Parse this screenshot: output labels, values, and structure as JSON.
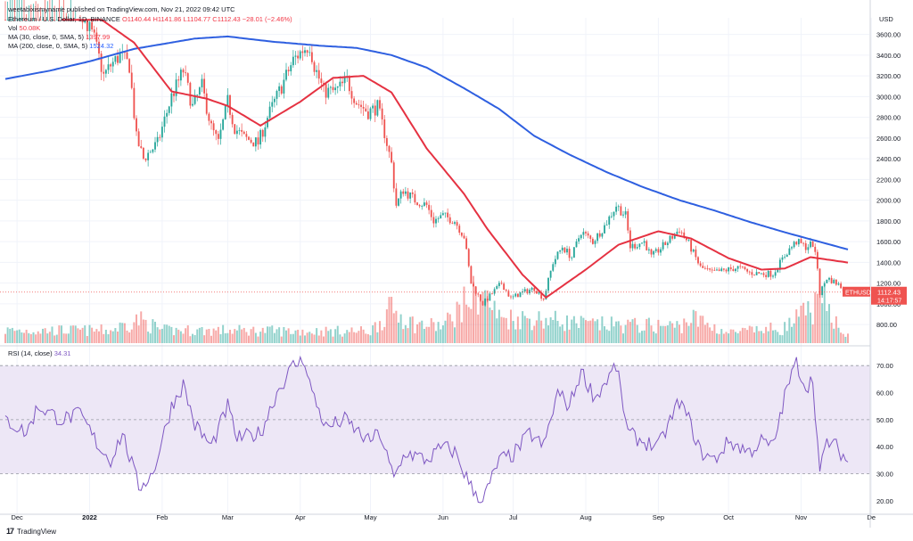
{
  "publisher": "weetabixismyname published on TradingView.com, Nov 21, 2022 09:42 UTC",
  "legend": {
    "symbol": "Ethereum / U.S. Dollar, 1D, BINANCE",
    "ohlc": "O1140.44  H1141.86  L1104.77  C1112.43  −28.01 (−2.46%)",
    "vol_label": "Vol",
    "vol_value": "50.08K",
    "ma30_label": "MA (30, close, 0, SMA, 5)",
    "ma30_value": "1397.99",
    "ma200_label": "MA (200, close, 0, SMA, 5)",
    "ma200_value": "1524.32",
    "rsi_label": "RSI (14, close)",
    "rsi_value": "34.31"
  },
  "currency": "USD",
  "price_tag": {
    "symbol": "ETHUSD",
    "price": "1112.43",
    "countdown": "14:17:57"
  },
  "brand": "TradingView",
  "colors": {
    "up": "#26a69a",
    "down": "#ef5350",
    "ma30": "#e53242",
    "ma200": "#2e5fe0",
    "rsi": "#7e57c2",
    "rsi_band": "#ede7f6"
  },
  "chart_data": [
    {
      "type": "candlestick",
      "title": "Ethereum / U.S. Dollar, 1D, BINANCE",
      "ylabel": "USD",
      "y_ticks": [
        800,
        1000,
        1200,
        1400,
        1600,
        1800,
        2000,
        2200,
        2400,
        2600,
        2800,
        3000,
        3200,
        3400,
        3600
      ],
      "ylim": [
        620,
        3760
      ],
      "x_ticks": [
        "Dec",
        "2022",
        "Feb",
        "Mar",
        "Apr",
        "May",
        "Jun",
        "Jul",
        "Aug",
        "Sep",
        "Oct",
        "Nov",
        "De"
      ],
      "last_price": 1112.43,
      "close_anchors": [
        {
          "date": "2021-11-26",
          "close": 4050
        },
        {
          "date": "2021-12-03",
          "close": 4100
        },
        {
          "date": "2021-12-05",
          "close": 3900
        },
        {
          "date": "2021-12-10",
          "close": 3950
        },
        {
          "date": "2021-12-16",
          "close": 3980
        },
        {
          "date": "2021-12-22",
          "close": 3950
        },
        {
          "date": "2021-12-28",
          "close": 3850
        },
        {
          "date": "2022-01-03",
          "close": 3550
        },
        {
          "date": "2022-01-07",
          "close": 3200
        },
        {
          "date": "2022-01-10",
          "close": 3300
        },
        {
          "date": "2022-01-14",
          "close": 3400
        },
        {
          "date": "2022-01-18",
          "close": 3300
        },
        {
          "date": "2022-01-21",
          "close": 2600
        },
        {
          "date": "2022-01-24",
          "close": 2400
        },
        {
          "date": "2022-01-30",
          "close": 2550
        },
        {
          "date": "2022-02-05",
          "close": 3000
        },
        {
          "date": "2022-02-10",
          "close": 3250
        },
        {
          "date": "2022-02-14",
          "close": 2900
        },
        {
          "date": "2022-02-18",
          "close": 3100
        },
        {
          "date": "2022-02-22",
          "close": 2700
        },
        {
          "date": "2022-02-25",
          "close": 2550
        },
        {
          "date": "2022-03-01",
          "close": 2950
        },
        {
          "date": "2022-03-04",
          "close": 2700
        },
        {
          "date": "2022-03-08",
          "close": 2600
        },
        {
          "date": "2022-03-14",
          "close": 2550
        },
        {
          "date": "2022-03-18",
          "close": 2800
        },
        {
          "date": "2022-03-24",
          "close": 3100
        },
        {
          "date": "2022-03-29",
          "close": 3350
        },
        {
          "date": "2022-04-02",
          "close": 3450
        },
        {
          "date": "2022-04-05",
          "close": 3500
        },
        {
          "date": "2022-04-07",
          "close": 3300
        },
        {
          "date": "2022-04-11",
          "close": 3050
        },
        {
          "date": "2022-04-16",
          "close": 3050
        },
        {
          "date": "2022-04-21",
          "close": 3150
        },
        {
          "date": "2022-04-25",
          "close": 2950
        },
        {
          "date": "2022-04-30",
          "close": 2850
        },
        {
          "date": "2022-05-04",
          "close": 2900
        },
        {
          "date": "2022-05-07",
          "close": 2650
        },
        {
          "date": "2022-05-10",
          "close": 2350
        },
        {
          "date": "2022-05-12",
          "close": 1950
        },
        {
          "date": "2022-05-15",
          "close": 2100
        },
        {
          "date": "2022-05-20",
          "close": 2000
        },
        {
          "date": "2022-05-25",
          "close": 1950
        },
        {
          "date": "2022-05-28",
          "close": 1800
        },
        {
          "date": "2022-06-01",
          "close": 1850
        },
        {
          "date": "2022-06-06",
          "close": 1800
        },
        {
          "date": "2022-06-10",
          "close": 1650
        },
        {
          "date": "2022-06-13",
          "close": 1200
        },
        {
          "date": "2022-06-18",
          "close": 1000
        },
        {
          "date": "2022-06-22",
          "close": 1100
        },
        {
          "date": "2022-06-26",
          "close": 1200
        },
        {
          "date": "2022-06-30",
          "close": 1050
        },
        {
          "date": "2022-07-04",
          "close": 1100
        },
        {
          "date": "2022-07-10",
          "close": 1150
        },
        {
          "date": "2022-07-14",
          "close": 1050
        },
        {
          "date": "2022-07-18",
          "close": 1400
        },
        {
          "date": "2022-07-22",
          "close": 1550
        },
        {
          "date": "2022-07-26",
          "close": 1450
        },
        {
          "date": "2022-07-30",
          "close": 1700
        },
        {
          "date": "2022-08-04",
          "close": 1600
        },
        {
          "date": "2022-08-09",
          "close": 1750
        },
        {
          "date": "2022-08-14",
          "close": 1950
        },
        {
          "date": "2022-08-18",
          "close": 1850
        },
        {
          "date": "2022-08-20",
          "close": 1550
        },
        {
          "date": "2022-08-26",
          "close": 1600
        },
        {
          "date": "2022-08-29",
          "close": 1450
        },
        {
          "date": "2022-09-05",
          "close": 1600
        },
        {
          "date": "2022-09-10",
          "close": 1720
        },
        {
          "date": "2022-09-14",
          "close": 1580
        },
        {
          "date": "2022-09-19",
          "close": 1350
        },
        {
          "date": "2022-09-24",
          "close": 1300
        },
        {
          "date": "2022-09-29",
          "close": 1320
        },
        {
          "date": "2022-10-05",
          "close": 1350
        },
        {
          "date": "2022-10-10",
          "close": 1300
        },
        {
          "date": "2022-10-15",
          "close": 1290
        },
        {
          "date": "2022-10-20",
          "close": 1290
        },
        {
          "date": "2022-10-26",
          "close": 1500
        },
        {
          "date": "2022-10-30",
          "close": 1600
        },
        {
          "date": "2022-11-03",
          "close": 1550
        },
        {
          "date": "2022-11-06",
          "close": 1580
        },
        {
          "date": "2022-11-08",
          "close": 1350
        },
        {
          "date": "2022-11-09",
          "close": 1100
        },
        {
          "date": "2022-11-12",
          "close": 1250
        },
        {
          "date": "2022-11-16",
          "close": 1200
        },
        {
          "date": "2022-11-21",
          "close": 1112
        }
      ],
      "ma30_anchors": [
        {
          "date": "2021-12-20",
          "value": 4100
        },
        {
          "date": "2022-01-05",
          "value": 3760
        },
        {
          "date": "2022-01-20",
          "value": 3520
        },
        {
          "date": "2022-02-05",
          "value": 3050
        },
        {
          "date": "2022-02-20",
          "value": 2980
        },
        {
          "date": "2022-03-01",
          "value": 2910
        },
        {
          "date": "2022-03-15",
          "value": 2720
        },
        {
          "date": "2022-04-01",
          "value": 2950
        },
        {
          "date": "2022-04-15",
          "value": 3180
        },
        {
          "date": "2022-04-28",
          "value": 3200
        },
        {
          "date": "2022-05-10",
          "value": 3040
        },
        {
          "date": "2022-05-25",
          "value": 2500
        },
        {
          "date": "2022-06-10",
          "value": 2060
        },
        {
          "date": "2022-06-20",
          "value": 1720
        },
        {
          "date": "2022-07-05",
          "value": 1280
        },
        {
          "date": "2022-07-15",
          "value": 1060
        },
        {
          "date": "2022-08-01",
          "value": 1330
        },
        {
          "date": "2022-08-15",
          "value": 1570
        },
        {
          "date": "2022-09-01",
          "value": 1700
        },
        {
          "date": "2022-09-15",
          "value": 1630
        },
        {
          "date": "2022-10-01",
          "value": 1440
        },
        {
          "date": "2022-10-15",
          "value": 1330
        },
        {
          "date": "2022-10-25",
          "value": 1340
        },
        {
          "date": "2022-11-05",
          "value": 1450
        },
        {
          "date": "2022-11-21",
          "value": 1398
        }
      ],
      "ma200_anchors": [
        {
          "date": "2021-11-26",
          "value": 3170
        },
        {
          "date": "2021-12-15",
          "value": 3250
        },
        {
          "date": "2022-01-01",
          "value": 3340
        },
        {
          "date": "2022-01-20",
          "value": 3460
        },
        {
          "date": "2022-02-15",
          "value": 3560
        },
        {
          "date": "2022-03-01",
          "value": 3580
        },
        {
          "date": "2022-03-20",
          "value": 3530
        },
        {
          "date": "2022-04-10",
          "value": 3490
        },
        {
          "date": "2022-04-25",
          "value": 3470
        },
        {
          "date": "2022-05-10",
          "value": 3400
        },
        {
          "date": "2022-05-25",
          "value": 3280
        },
        {
          "date": "2022-06-10",
          "value": 3080
        },
        {
          "date": "2022-06-25",
          "value": 2880
        },
        {
          "date": "2022-07-10",
          "value": 2620
        },
        {
          "date": "2022-07-25",
          "value": 2440
        },
        {
          "date": "2022-08-10",
          "value": 2270
        },
        {
          "date": "2022-08-25",
          "value": 2130
        },
        {
          "date": "2022-09-10",
          "value": 2000
        },
        {
          "date": "2022-09-25",
          "value": 1900
        },
        {
          "date": "2022-10-10",
          "value": 1790
        },
        {
          "date": "2022-10-25",
          "value": 1690
        },
        {
          "date": "2022-11-21",
          "value": 1524
        }
      ]
    },
    {
      "type": "bar",
      "title": "Vol",
      "values_note_free": true,
      "anchors": [
        {
          "date": "2021-11-26",
          "volume": 15
        },
        {
          "date": "2022-01-10",
          "volume": 15
        },
        {
          "date": "2022-01-22",
          "volume": 28
        },
        {
          "date": "2022-02-01",
          "volume": 15
        },
        {
          "date": "2022-03-01",
          "volume": 15
        },
        {
          "date": "2022-04-01",
          "volume": 14
        },
        {
          "date": "2022-05-01",
          "volume": 14
        },
        {
          "date": "2022-05-10",
          "volume": 40
        },
        {
          "date": "2022-05-20",
          "volume": 22
        },
        {
          "date": "2022-06-01",
          "volume": 20
        },
        {
          "date": "2022-06-13",
          "volume": 55
        },
        {
          "date": "2022-06-18",
          "volume": 60
        },
        {
          "date": "2022-06-25",
          "volume": 30
        },
        {
          "date": "2022-07-15",
          "volume": 28
        },
        {
          "date": "2022-08-01",
          "volume": 22
        },
        {
          "date": "2022-09-10",
          "volume": 20
        },
        {
          "date": "2022-09-15",
          "volume": 30
        },
        {
          "date": "2022-10-01",
          "volume": 12
        },
        {
          "date": "2022-10-25",
          "volume": 18
        },
        {
          "date": "2022-11-08",
          "volume": 45
        },
        {
          "date": "2022-11-10",
          "volume": 50
        },
        {
          "date": "2022-11-21",
          "volume": 8
        }
      ]
    },
    {
      "type": "line",
      "title": "RSI (14, close)",
      "y_ticks": [
        20,
        30,
        40,
        50,
        60,
        70
      ],
      "ylim": [
        15,
        76
      ],
      "bands": [
        30,
        50,
        70
      ],
      "last_value": 34.31,
      "anchors": [
        {
          "date": "2021-11-26",
          "rsi": 50
        },
        {
          "date": "2021-12-05",
          "rsi": 45
        },
        {
          "date": "2021-12-10",
          "rsi": 55
        },
        {
          "date": "2021-12-20",
          "rsi": 50
        },
        {
          "date": "2021-12-28",
          "rsi": 52
        },
        {
          "date": "2022-01-05",
          "rsi": 40
        },
        {
          "date": "2022-01-10",
          "rsi": 35
        },
        {
          "date": "2022-01-15",
          "rsi": 45
        },
        {
          "date": "2022-01-22",
          "rsi": 25
        },
        {
          "date": "2022-01-28",
          "rsi": 30
        },
        {
          "date": "2022-02-05",
          "rsi": 55
        },
        {
          "date": "2022-02-10",
          "rsi": 63
        },
        {
          "date": "2022-02-15",
          "rsi": 48
        },
        {
          "date": "2022-02-22",
          "rsi": 40
        },
        {
          "date": "2022-03-01",
          "rsi": 55
        },
        {
          "date": "2022-03-05",
          "rsi": 43
        },
        {
          "date": "2022-03-15",
          "rsi": 45
        },
        {
          "date": "2022-03-22",
          "rsi": 60
        },
        {
          "date": "2022-03-29",
          "rsi": 70
        },
        {
          "date": "2022-04-03",
          "rsi": 72
        },
        {
          "date": "2022-04-06",
          "rsi": 60
        },
        {
          "date": "2022-04-12",
          "rsi": 47
        },
        {
          "date": "2022-04-20",
          "rsi": 50
        },
        {
          "date": "2022-04-30",
          "rsi": 42
        },
        {
          "date": "2022-05-05",
          "rsi": 45
        },
        {
          "date": "2022-05-11",
          "rsi": 28
        },
        {
          "date": "2022-05-16",
          "rsi": 38
        },
        {
          "date": "2022-05-25",
          "rsi": 35
        },
        {
          "date": "2022-06-01",
          "rsi": 40
        },
        {
          "date": "2022-06-06",
          "rsi": 38
        },
        {
          "date": "2022-06-13",
          "rsi": 25
        },
        {
          "date": "2022-06-18",
          "rsi": 20
        },
        {
          "date": "2022-06-25",
          "rsi": 35
        },
        {
          "date": "2022-07-01",
          "rsi": 37
        },
        {
          "date": "2022-07-08",
          "rsi": 45
        },
        {
          "date": "2022-07-14",
          "rsi": 40
        },
        {
          "date": "2022-07-20",
          "rsi": 60
        },
        {
          "date": "2022-07-25",
          "rsi": 55
        },
        {
          "date": "2022-07-30",
          "rsi": 68
        },
        {
          "date": "2022-08-05",
          "rsi": 58
        },
        {
          "date": "2022-08-14",
          "rsi": 70
        },
        {
          "date": "2022-08-19",
          "rsi": 45
        },
        {
          "date": "2022-08-25",
          "rsi": 42
        },
        {
          "date": "2022-09-01",
          "rsi": 40
        },
        {
          "date": "2022-09-10",
          "rsi": 57
        },
        {
          "date": "2022-09-14",
          "rsi": 50
        },
        {
          "date": "2022-09-19",
          "rsi": 38
        },
        {
          "date": "2022-09-25",
          "rsi": 35
        },
        {
          "date": "2022-10-01",
          "rsi": 42
        },
        {
          "date": "2022-10-10",
          "rsi": 38
        },
        {
          "date": "2022-10-15",
          "rsi": 42
        },
        {
          "date": "2022-10-20",
          "rsi": 40
        },
        {
          "date": "2022-10-26",
          "rsi": 62
        },
        {
          "date": "2022-10-30",
          "rsi": 71
        },
        {
          "date": "2022-11-03",
          "rsi": 62
        },
        {
          "date": "2022-11-06",
          "rsi": 65
        },
        {
          "date": "2022-11-09",
          "rsi": 30
        },
        {
          "date": "2022-11-12",
          "rsi": 42
        },
        {
          "date": "2022-11-16",
          "rsi": 40
        },
        {
          "date": "2022-11-21",
          "rsi": 34.31
        }
      ]
    }
  ]
}
